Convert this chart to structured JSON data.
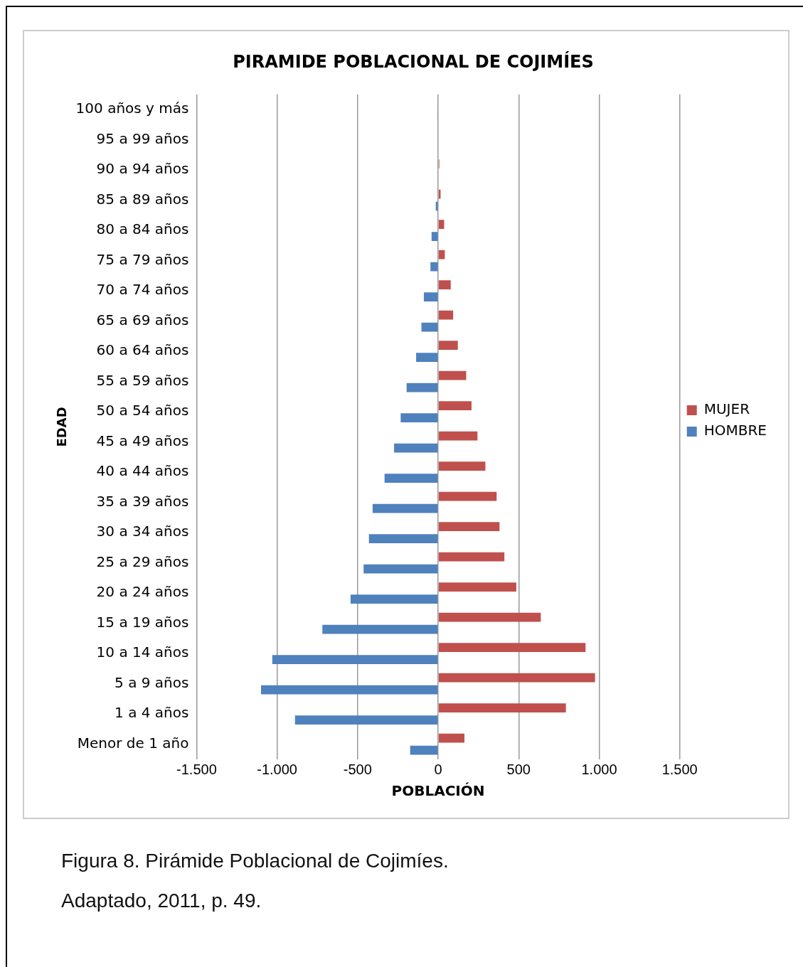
{
  "chart_data": {
    "type": "bar",
    "orientation": "horizontal",
    "title": "PIRAMIDE POBLACIONAL DE COJIMÍES",
    "xlabel": "POBLACIÓN",
    "ylabel": "EDAD",
    "categories": [
      "100 años y más",
      "95 a 99 años",
      "90 a 94 años",
      "85 a 89 años",
      "80 a 84 años",
      "75 a 79 años",
      "70 a 74 años",
      "65 a 69 años",
      "60 a 64 años",
      "55 a 59 años",
      "50 a 54 años",
      "45 a 49 años",
      "40 a 44 años",
      "35 a 39 años",
      "30 a 34 años",
      "25 a 29 años",
      "20 a 24 años",
      "15 a 19 años",
      "10 a 14 años",
      "5 a 9 años",
      "1 a 4 años",
      "Menor de 1 año"
    ],
    "series": [
      {
        "name": "MUJER",
        "color": "#c0504d",
        "values": [
          null,
          null,
          7,
          15,
          37,
          41,
          78,
          93,
          122,
          174,
          207,
          244,
          293,
          363,
          381,
          411,
          485,
          637,
          915,
          974,
          793,
          163
        ]
      },
      {
        "name": "HOMBRE",
        "color": "#4f81bd",
        "values": [
          -2,
          null,
          null,
          -15,
          -41,
          -48,
          -89,
          -104,
          -137,
          -196,
          -233,
          -274,
          -333,
          -407,
          -430,
          -463,
          -544,
          -719,
          -1030,
          -1100,
          -889,
          -174
        ]
      }
    ],
    "xlim": [
      -1500,
      1500
    ],
    "xticks": [
      {
        "value": -1500,
        "label": "-1.500"
      },
      {
        "value": -1000,
        "label": "-1.000"
      },
      -500,
      0,
      500,
      {
        "value": 1000,
        "label": "1.000"
      },
      {
        "value": 1500,
        "label": "1.500"
      }
    ],
    "grid": "x",
    "legend": "right",
    "annotations": [
      "Figura 8. Pirámide Poblacional de Cojimíes.",
      "Adaptado, 2011, p. 49."
    ]
  }
}
